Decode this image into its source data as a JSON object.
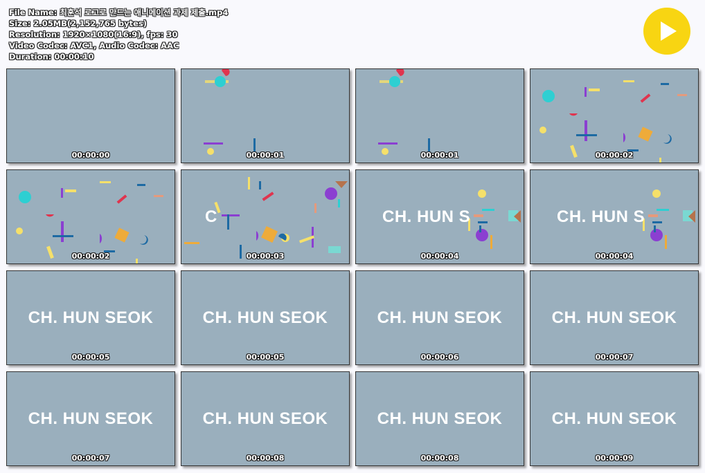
{
  "file_info": {
    "name_label": "File Name:",
    "name_value": "최훈석 로고로 만드는 애니메이션 과제 제출.mp4",
    "size_label": "Size:",
    "size_value": "2.05MB(2,152,765 bytes)",
    "resolution_label": "Resolution:",
    "resolution_value": "1920×1080(16:9), fps: 30",
    "codec_label": "Video Codec:",
    "codec_value": "AVC1, Audio Codec: AAC",
    "duration_label": "Duration:",
    "duration_value": "00:00:10"
  },
  "play_icon": "play-icon",
  "colors": {
    "thumb_bg": "#9aafbd",
    "play_button": "#f8d512",
    "cyan": "#2ecfd2",
    "red": "#e0344e",
    "yellow": "#f5e06a",
    "purple": "#8b3fd1",
    "orange": "#eeab3a",
    "blue": "#1d6aa3"
  },
  "thumbnails": [
    {
      "time": "00:00:00",
      "title": "",
      "scene": "empty"
    },
    {
      "time": "00:00:01",
      "title": "",
      "scene": "early"
    },
    {
      "time": "00:00:01",
      "title": "",
      "scene": "early"
    },
    {
      "time": "00:00:02",
      "title": "",
      "scene": "confetti"
    },
    {
      "time": "00:00:02",
      "title": "",
      "scene": "confetti"
    },
    {
      "time": "00:00:03",
      "title": "C",
      "scene": "c-confetti"
    },
    {
      "time": "00:00:04",
      "title": "CH. HUN S",
      "scene": "partial"
    },
    {
      "time": "00:00:04",
      "title": "CH. HUN S",
      "scene": "partial"
    },
    {
      "time": "00:00:05",
      "title": "CH. HUN SEOK",
      "scene": "full"
    },
    {
      "time": "00:00:05",
      "title": "CH. HUN SEOK",
      "scene": "full"
    },
    {
      "time": "00:00:06",
      "title": "CH. HUN SEOK",
      "scene": "full"
    },
    {
      "time": "00:00:07",
      "title": "CH. HUN SEOK",
      "scene": "full"
    },
    {
      "time": "00:00:07",
      "title": "CH. HUN SEOK",
      "scene": "full"
    },
    {
      "time": "00:00:08",
      "title": "CH. HUN SEOK",
      "scene": "full"
    },
    {
      "time": "00:00:08",
      "title": "CH. HUN SEOK",
      "scene": "full"
    },
    {
      "time": "00:00:09",
      "title": "CH. HUN SEOK",
      "scene": "full"
    }
  ]
}
